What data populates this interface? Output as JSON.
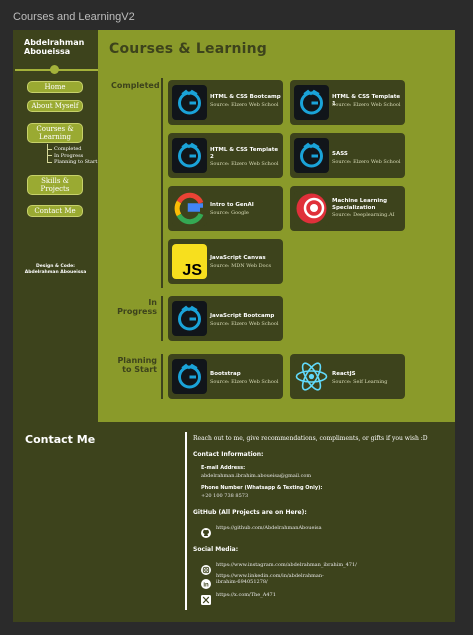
{
  "frame_title": "Courses and LearningV2",
  "sidebar": {
    "name": "Abdelrahman Aboueissa",
    "nav": {
      "home": "Home",
      "about": "About Myself",
      "courses": "Courses & Learning",
      "skills": "Skills & Projects",
      "contact": "Contact Me"
    },
    "sub_items": [
      "Completed",
      "In Progress",
      "Planning to Start"
    ],
    "credit_line1": "Design & Code:",
    "credit_line2": "Abdelrahman Aboueissa"
  },
  "main": {
    "title": "Courses & Learning",
    "sections": {
      "completed": "Completed",
      "in_progress": "In Progress",
      "planning": "Planning to Start"
    },
    "cards": {
      "html_css_bootcamp": {
        "title": "HTML & CSS Bootcamp",
        "source": "Source: Elzero Web School",
        "icon": "elzero-logo-icon"
      },
      "html_css_template1": {
        "title": "HTML & CSS Template 1",
        "source": "Source: Elzero Web School",
        "icon": "elzero-logo-icon"
      },
      "html_css_template2": {
        "title": "HTML & CSS Template 2",
        "source": "Source: Elzero Web School",
        "icon": "elzero-logo-icon"
      },
      "sass": {
        "title": "SASS",
        "source": "Source: Elzero Web School",
        "icon": "elzero-logo-icon"
      },
      "genai": {
        "title": "Intro to GenAI",
        "source": "Source: Google",
        "icon": "google-logo-icon"
      },
      "ml": {
        "title": "Machine Learning Specialization",
        "source": "Source: Deeplearning.AI",
        "icon": "deeplearning-ai-logo-icon"
      },
      "js_canvas": {
        "title": "JavaScript Canvas",
        "source": "Source: MDN Web Docs",
        "icon": "javascript-logo-icon"
      },
      "js_bootcamp": {
        "title": "JavaScript Bootcamp",
        "source": "Source: Elzero Web School",
        "icon": "elzero-logo-icon"
      },
      "bootstrap": {
        "title": "Bootstrap",
        "source": "Source: Elzero Web School",
        "icon": "elzero-logo-icon"
      },
      "reactjs": {
        "title": "ReactJS",
        "source": "Source: Self Learning",
        "icon": "react-logo-icon"
      }
    }
  },
  "footer": {
    "title": "Contact Me",
    "intro": "Reach out to me, give recommendations, compliments, or gifts if you wish :D",
    "contact_info_heading": "Contact Information:",
    "email_label": "E-mail Address:",
    "email_value": "abdelrahman.ibrahim.aboueisa@gmail.com",
    "phone_label": "Phone Number (Whatsapp & Texting Only):",
    "phone_value": "+20 100 738 8573",
    "github_heading": "GitHub (All Projects are on Here):",
    "github_url": "https://github.com/AbdelrahmanAboueisa",
    "social_heading": "Social Media:",
    "instagram_url": "https://www.instagram.com/abdelrahman_ibrahim_471/",
    "linkedin_url_line1": "https://www.linkedin.com/in/abdelrahman-",
    "linkedin_url_line2": "ibrahim-694051278/",
    "x_url": "https://x.com/The_A471"
  },
  "colors": {
    "olive_bg": "#8a9a2a",
    "dark_olive": "#3d431c",
    "button": "#9aaa32"
  }
}
